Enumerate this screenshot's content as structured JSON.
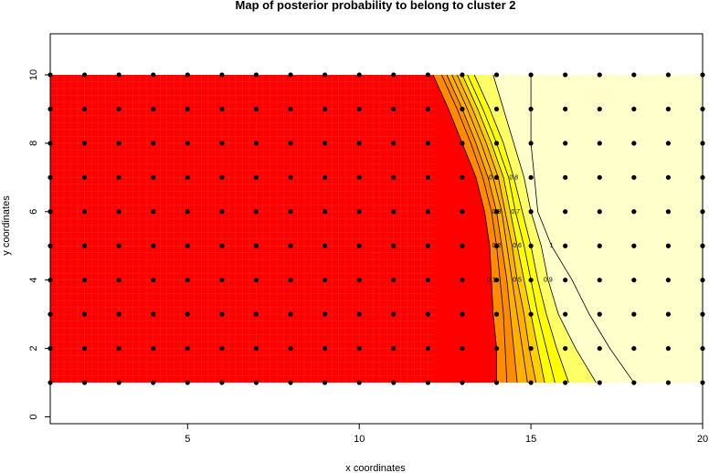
{
  "chart_data": {
    "type": "heatmap",
    "title": "Map of posterior probability to belong to cluster  2",
    "xlabel": "x coordinates",
    "ylabel": "y coordinates",
    "xlim": [
      1,
      20
    ],
    "ylim": [
      -0.2,
      11.2
    ],
    "x_ticks": [
      5,
      10,
      15,
      20
    ],
    "y_ticks": [
      0,
      2,
      4,
      6,
      8,
      10
    ],
    "grid": false,
    "legend": "none",
    "colors": {
      "low": "#ff0000",
      "mid_low": "#ff8c00",
      "mid": "#ffb000",
      "mid_high": "#ffff00",
      "high": "#ffffcc",
      "points": "#000000"
    },
    "field_extent": {
      "x": [
        1,
        20
      ],
      "y": [
        1,
        10
      ]
    },
    "points": {
      "x": [
        1,
        20
      ],
      "y": [
        1,
        10
      ],
      "step": 1
    },
    "transition_boundary": {
      "y": [
        1,
        2,
        3,
        4,
        5,
        6,
        7,
        8,
        9,
        10
      ],
      "x_start": [
        14.0,
        14.0,
        13.9,
        13.85,
        13.8,
        13.65,
        13.4,
        13.0,
        12.6,
        12.15
      ],
      "x_end": [
        16.9,
        16.3,
        15.8,
        15.5,
        15.3,
        15.0,
        14.8,
        14.5,
        14.2,
        13.9
      ]
    },
    "contours": [
      {
        "level": "0.1",
        "x": [
          14.0,
          14.0,
          13.9,
          13.85,
          13.8,
          13.65,
          13.4,
          13.0,
          12.6,
          12.15
        ]
      },
      {
        "level": "0.2",
        "x": [
          14.3,
          14.25,
          14.2,
          14.1,
          14.0,
          13.85,
          13.6,
          13.25,
          12.85,
          12.4
        ]
      },
      {
        "level": "0.3",
        "x": [
          14.6,
          14.5,
          14.4,
          14.3,
          14.15,
          14.0,
          13.75,
          13.4,
          13.0,
          12.55
        ]
      },
      {
        "level": "0.4",
        "x": [
          14.9,
          14.75,
          14.6,
          14.45,
          14.3,
          14.15,
          13.9,
          13.55,
          13.15,
          12.7
        ]
      },
      {
        "level": "0.5",
        "x": [
          15.15,
          14.95,
          14.8,
          14.6,
          14.45,
          14.25,
          14.05,
          13.7,
          13.3,
          12.85
        ]
      },
      {
        "level": "0.6",
        "x": [
          15.4,
          15.2,
          15.0,
          14.8,
          14.6,
          14.4,
          14.2,
          13.85,
          13.45,
          13.0
        ]
      },
      {
        "level": "0.7",
        "x": [
          15.7,
          15.45,
          15.2,
          15.0,
          14.8,
          14.55,
          14.35,
          14.0,
          13.6,
          13.15
        ]
      },
      {
        "level": "0.8",
        "x": [
          16.1,
          15.75,
          15.45,
          15.2,
          15.0,
          14.75,
          14.5,
          14.2,
          13.8,
          13.35
        ]
      },
      {
        "level": "0.9",
        "x": [
          16.9,
          16.3,
          15.8,
          15.5,
          15.3,
          15.0,
          14.8,
          14.5,
          14.2,
          13.9
        ]
      },
      {
        "level": "1",
        "x": [
          18.0,
          17.3,
          16.7,
          16.2,
          15.6,
          15.2,
          15.1,
          15.0,
          15.0,
          15.0
        ]
      }
    ]
  }
}
